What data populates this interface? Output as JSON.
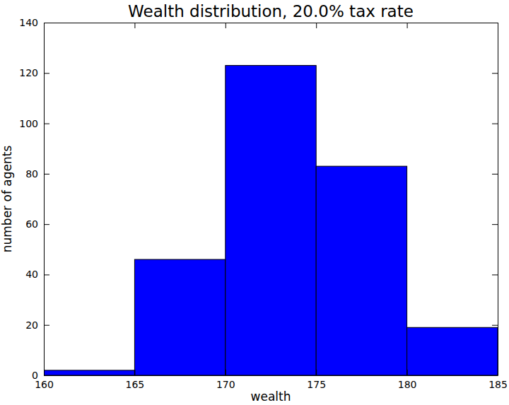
{
  "chart_data": {
    "type": "histogram",
    "title": "Wealth distribution, 20.0% tax rate",
    "x_label": "wealth",
    "y_label": "number of agents",
    "bins": [
      160,
      165,
      170,
      175,
      180,
      185
    ],
    "values": [
      2,
      46,
      123,
      83,
      19
    ],
    "color": "#0000ff",
    "xlim": [
      160,
      185
    ],
    "ylim": [
      0,
      140
    ],
    "xticks": [
      160,
      165,
      170,
      175,
      180,
      185
    ],
    "yticks": [
      0,
      20,
      40,
      60,
      80,
      100,
      120,
      140
    ]
  }
}
